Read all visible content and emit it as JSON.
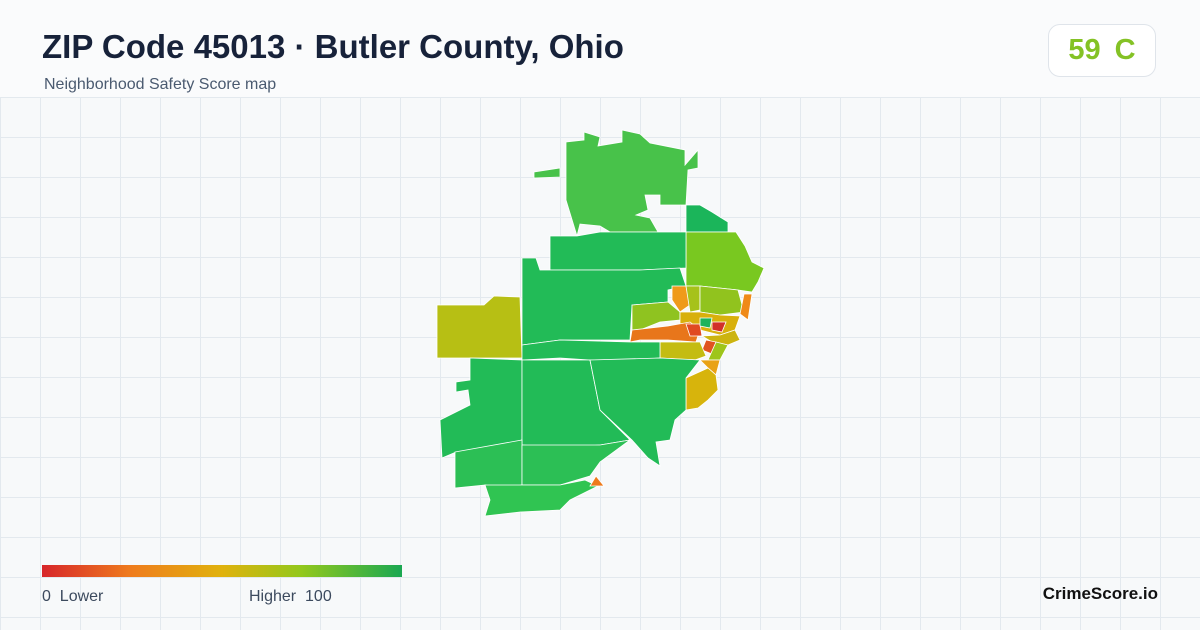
{
  "header": {
    "title": "ZIP Code 45013 · Butler County, Ohio",
    "subtitle": "Neighborhood Safety Score map"
  },
  "score": {
    "value": "59",
    "grade": "C"
  },
  "legend": {
    "min": "0",
    "min_label": "Lower",
    "max_label": "Higher",
    "max": "100"
  },
  "brand": "CrimeScore.io"
}
